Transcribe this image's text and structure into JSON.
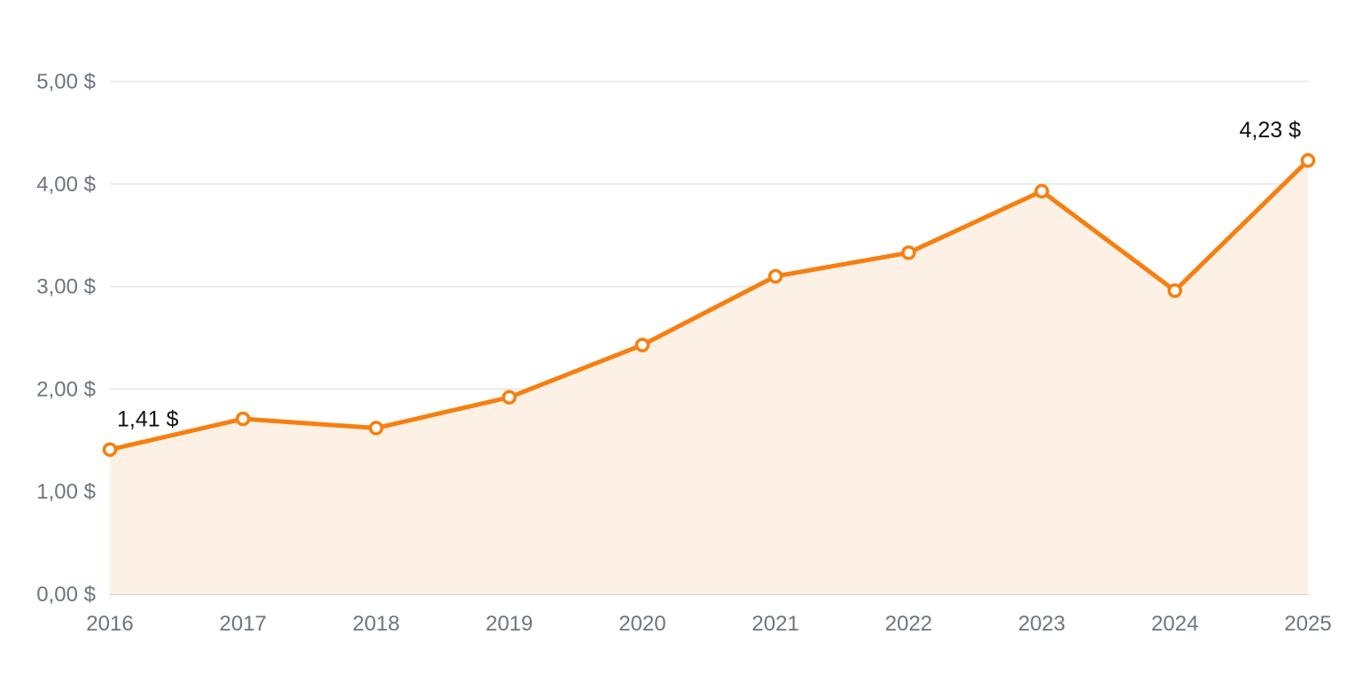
{
  "chart_data": {
    "type": "area",
    "x": [
      "2016",
      "2017",
      "2018",
      "2019",
      "2020",
      "2021",
      "2022",
      "2023",
      "2024",
      "2025"
    ],
    "series": [
      {
        "values": [
          1.41,
          1.71,
          1.62,
          1.92,
          2.43,
          3.1,
          3.33,
          3.93,
          2.96,
          4.23
        ]
      }
    ],
    "ylim": [
      0,
      5
    ],
    "yticks": [
      0,
      1,
      2,
      3,
      4,
      5
    ],
    "ytick_labels": [
      "0,00 $",
      "1,00 $",
      "2,00 $",
      "3,00 $",
      "4,00 $",
      "5,00 $"
    ],
    "data_labels": [
      {
        "index": 0,
        "text": "1,41 $"
      },
      {
        "index": 9,
        "text": "4,23 $"
      }
    ],
    "grid": true,
    "legend": "none",
    "colors": {
      "line": "#f77f0f",
      "area": "#fdf1e6",
      "marker_fill": "#ffffff",
      "grid": "#e3e5e8",
      "tick_text": "#6e7480",
      "label_text": "#111111"
    }
  }
}
